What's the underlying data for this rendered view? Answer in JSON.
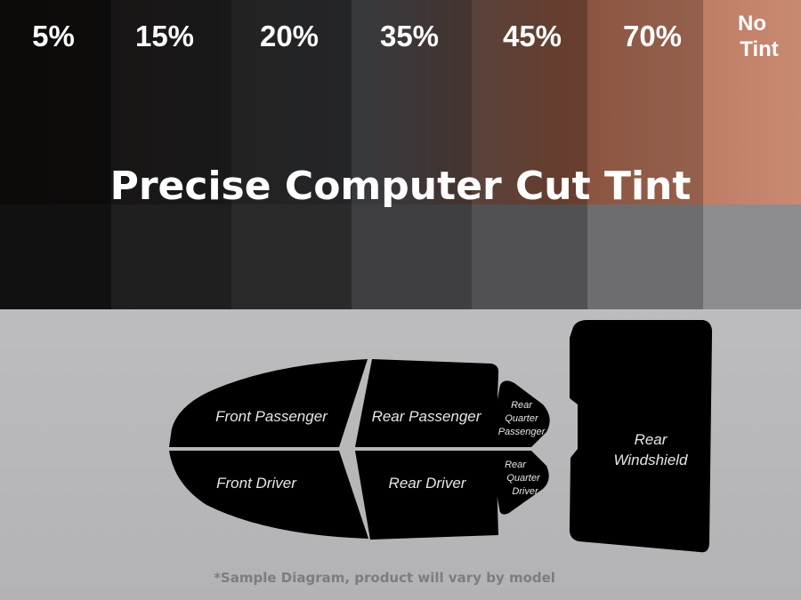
{
  "tint_levels": [
    "5%",
    "15%",
    "20%",
    "35%",
    "45%",
    "70%",
    "No",
    "Tint"
  ],
  "headline": "Precise Computer Cut Tint",
  "pieces": {
    "front_passenger": "Front Passenger",
    "front_driver": "Front Driver",
    "rear_passenger": "Rear Passenger",
    "rear_driver": "Rear Driver",
    "rear_quarter_passenger": [
      "Rear",
      "Quarter",
      "Passenger"
    ],
    "rear_quarter_driver": [
      "Rear",
      "Quarter",
      "Driver"
    ],
    "rear_windshield": [
      "Rear",
      "Windshield"
    ]
  },
  "footnote": "*Sample Diagram, product will vary by model",
  "colors": {
    "piece": "#000000",
    "background": "#b9b9bb",
    "footnote": "#7d7d80"
  }
}
